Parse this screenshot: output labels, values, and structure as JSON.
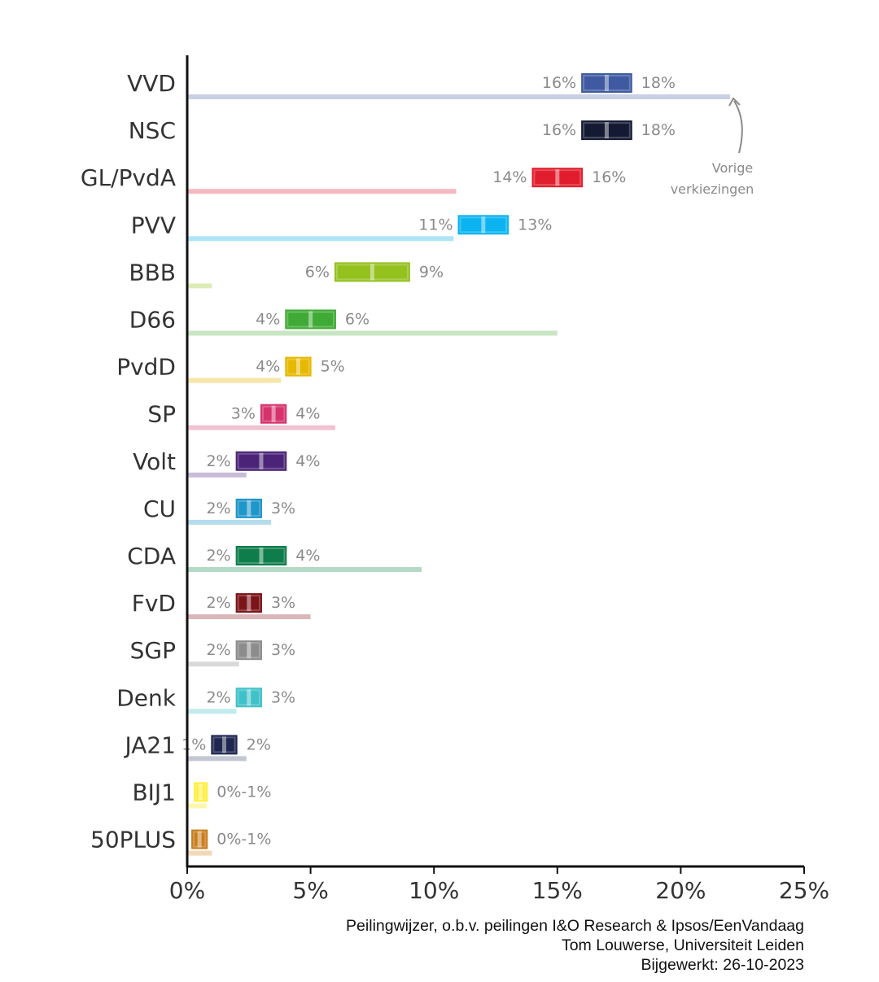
{
  "chart_data": {
    "type": "range-bar",
    "title": "",
    "xlabel": "",
    "ylabel": "",
    "xlim": [
      0,
      25
    ],
    "x_ticks": [
      0,
      5,
      10,
      15,
      20,
      25
    ],
    "x_tick_labels": [
      "0%",
      "5%",
      "10%",
      "15%",
      "20%",
      "25%"
    ],
    "annotation": {
      "line1": "Vorige",
      "line2": "verkiezingen",
      "points_to": "VVD"
    },
    "parties": [
      {
        "name": "VVD",
        "low": 16,
        "high": 18,
        "low_label": "16%",
        "high_label": "18%",
        "previous": 22.0,
        "color": "#3f5aa0",
        "prev_color": "#c9cfe4"
      },
      {
        "name": "NSC",
        "low": 16,
        "high": 18,
        "low_label": "16%",
        "high_label": "18%",
        "previous": null,
        "color": "#141a33",
        "prev_color": "#c5c7d0"
      },
      {
        "name": "GL/PvdA",
        "low": 14,
        "high": 16,
        "low_label": "14%",
        "high_label": "16%",
        "previous": 10.9,
        "color": "#e11d2d",
        "prev_color": "#f4b9c0"
      },
      {
        "name": "PVV",
        "low": 11,
        "high": 13,
        "low_label": "11%",
        "high_label": "13%",
        "previous": 10.8,
        "color": "#0bb4f0",
        "prev_color": "#aee4f7"
      },
      {
        "name": "BBB",
        "low": 6,
        "high": 9,
        "low_label": "6%",
        "high_label": "9%",
        "previous": 1.0,
        "color": "#95c11f",
        "prev_color": "#dcecb5"
      },
      {
        "name": "D66",
        "low": 4,
        "high": 6,
        "low_label": "4%",
        "high_label": "6%",
        "previous": 15.0,
        "color": "#3faa35",
        "prev_color": "#c8e6c3"
      },
      {
        "name": "PvdD",
        "low": 4,
        "high": 5,
        "low_label": "4%",
        "high_label": "5%",
        "previous": 3.8,
        "color": "#e6b800",
        "prev_color": "#f6e6a8"
      },
      {
        "name": "SP",
        "low": 3,
        "high": 4,
        "low_label": "3%",
        "high_label": "4%",
        "previous": 6.0,
        "color": "#d6336c",
        "prev_color": "#f1c2d3"
      },
      {
        "name": "Volt",
        "low": 2,
        "high": 4,
        "low_label": "2%",
        "high_label": "4%",
        "previous": 2.4,
        "color": "#4b2478",
        "prev_color": "#c9bcd8"
      },
      {
        "name": "CU",
        "low": 2,
        "high": 3,
        "low_label": "2%",
        "high_label": "3%",
        "previous": 3.4,
        "color": "#1e96c8",
        "prev_color": "#b3dcec"
      },
      {
        "name": "CDA",
        "low": 2,
        "high": 4,
        "low_label": "2%",
        "high_label": "4%",
        "previous": 9.5,
        "color": "#0f7d4b",
        "prev_color": "#b4d9c5"
      },
      {
        "name": "FvD",
        "low": 2,
        "high": 3,
        "low_label": "2%",
        "high_label": "3%",
        "previous": 5.0,
        "color": "#7b1419",
        "prev_color": "#dbb6b9"
      },
      {
        "name": "SGP",
        "low": 2,
        "high": 3,
        "low_label": "2%",
        "high_label": "3%",
        "previous": 2.1,
        "color": "#8c8c8c",
        "prev_color": "#d9d9d9"
      },
      {
        "name": "Denk",
        "low": 2,
        "high": 3,
        "low_label": "2%",
        "high_label": "3%",
        "previous": 2.0,
        "color": "#3fc1c9",
        "prev_color": "#c2eaed"
      },
      {
        "name": "JA21",
        "low": 1,
        "high": 2,
        "low_label": "1%",
        "high_label": "2%",
        "previous": 2.4,
        "color": "#1f2750",
        "prev_color": "#c3c6d3"
      },
      {
        "name": "BIJ1",
        "low": 0.3,
        "high": 0.8,
        "low_label": "",
        "high_label": "0%-1%",
        "previous": 0.8,
        "color": "#ffef3a",
        "prev_color": "#fdf6b0"
      },
      {
        "name": "50PLUS",
        "low": 0.2,
        "high": 0.8,
        "low_label": "",
        "high_label": "0%-1%",
        "previous": 1.0,
        "color": "#c87e1e",
        "prev_color": "#f0d8b8"
      }
    ]
  },
  "footer": {
    "line1": "Peilingwijzer, o.b.v. peilingen I&O Research & Ipsos/EenVandaag",
    "line2": "Tom Louwerse, Universiteit Leiden",
    "line3": "Bijgewerkt: 26-10-2023"
  }
}
